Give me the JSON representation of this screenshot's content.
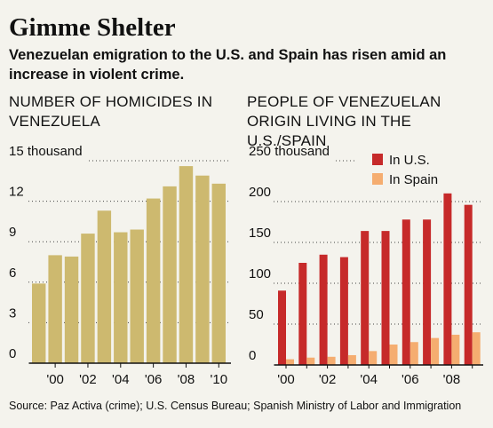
{
  "header": {
    "title": "Gimme Shelter",
    "subtitle": "Venezuelan emigration to the U.S. and Spain has risen amid an increase in violent crime."
  },
  "colors": {
    "homicides_bar": "#cdb96f",
    "us_bar": "#c62a2a",
    "spain_bar": "#f5ad70",
    "background": "#f4f3ed",
    "gridline": "#444444"
  },
  "chart_data": [
    {
      "type": "bar",
      "title": "NUMBER OF HOMICIDES IN VENEZUELA",
      "categories": [
        "1999",
        "2000",
        "2001",
        "2002",
        "2003",
        "2004",
        "2005",
        "2006",
        "2007",
        "2008",
        "2009",
        "2010"
      ],
      "x_tick_labels": [
        "",
        "'00",
        "",
        "'02",
        "",
        "'04",
        "",
        "'06",
        "",
        "'08",
        "",
        "'10"
      ],
      "values": [
        5.9,
        8.0,
        7.9,
        9.6,
        11.3,
        9.7,
        9.9,
        12.2,
        13.1,
        14.6,
        13.9,
        13.3
      ],
      "ylim": [
        0,
        15
      ],
      "y_ticks": [
        0,
        3,
        6,
        9,
        12,
        15
      ],
      "y_tick_labels": [
        "0",
        "3",
        "6",
        "9",
        "12",
        "15 thousand"
      ],
      "grid": true
    },
    {
      "type": "bar",
      "title": "PEOPLE OF VENEZUELAN ORIGIN LIVING IN THE U.S./SPAIN",
      "categories": [
        "2000",
        "2001",
        "2002",
        "2003",
        "2004",
        "2005",
        "2006",
        "2007",
        "2008",
        "2009"
      ],
      "x_tick_labels": [
        "'00",
        "",
        "'02",
        "",
        "'04",
        "",
        "'06",
        "",
        "'08",
        ""
      ],
      "series": [
        {
          "name": "In U.S.",
          "values": [
            91,
            125,
            135,
            132,
            164,
            164,
            178,
            178,
            210,
            196
          ]
        },
        {
          "name": "In Spain",
          "values": [
            7,
            9,
            10,
            12,
            17,
            25,
            28,
            33,
            37,
            40
          ]
        }
      ],
      "ylim": [
        0,
        250
      ],
      "y_ticks": [
        0,
        50,
        100,
        150,
        200,
        250
      ],
      "y_tick_labels": [
        "0",
        "50",
        "100",
        "150",
        "200",
        "250 thousand"
      ],
      "legend": "top-right",
      "grid": true
    }
  ],
  "source": "Source: Paz Activa (crime); U.S. Census Bureau; Spanish Ministry of Labor and Immigration"
}
